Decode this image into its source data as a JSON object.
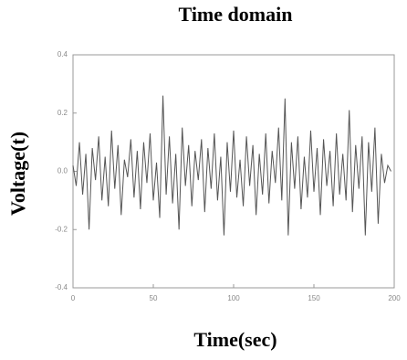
{
  "chart_data": {
    "type": "line",
    "title": "Time domain",
    "xlabel": "Time(sec)",
    "ylabel": "Voltage(t)",
    "x": [
      0,
      2,
      4,
      6,
      8,
      10,
      12,
      14,
      16,
      18,
      20,
      22,
      24,
      26,
      28,
      30,
      32,
      34,
      36,
      38,
      40,
      42,
      44,
      46,
      48,
      50,
      52,
      54,
      56,
      58,
      60,
      62,
      64,
      66,
      68,
      70,
      72,
      74,
      76,
      78,
      80,
      82,
      84,
      86,
      88,
      90,
      92,
      94,
      96,
      98,
      100,
      102,
      104,
      106,
      108,
      110,
      112,
      114,
      116,
      118,
      120,
      122,
      124,
      126,
      128,
      130,
      132,
      134,
      136,
      138,
      140,
      142,
      144,
      146,
      148,
      150,
      152,
      154,
      156,
      158,
      160,
      162,
      164,
      166,
      168,
      170,
      172,
      174,
      176,
      178,
      180,
      182,
      184,
      186,
      188,
      190,
      192,
      194,
      196,
      198
    ],
    "values": [
      0.02,
      -0.05,
      0.1,
      -0.08,
      0.06,
      -0.2,
      0.08,
      -0.03,
      0.12,
      -0.1,
      0.05,
      -0.12,
      0.14,
      -0.06,
      0.09,
      -0.15,
      0.04,
      -0.02,
      0.11,
      -0.09,
      0.07,
      -0.13,
      0.1,
      -0.04,
      0.13,
      -0.1,
      0.03,
      -0.16,
      0.26,
      -0.08,
      0.12,
      -0.11,
      0.06,
      -0.2,
      0.15,
      -0.05,
      0.09,
      -0.12,
      0.07,
      -0.03,
      0.11,
      -0.14,
      0.08,
      -0.06,
      0.13,
      -0.1,
      0.05,
      -0.22,
      0.1,
      -0.07,
      0.14,
      -0.09,
      0.04,
      -0.12,
      0.12,
      -0.05,
      0.09,
      -0.15,
      0.06,
      -0.08,
      0.13,
      -0.11,
      0.07,
      -0.04,
      0.15,
      -0.1,
      0.25,
      -0.22,
      0.1,
      -0.06,
      0.12,
      -0.13,
      0.05,
      -0.09,
      0.14,
      -0.07,
      0.08,
      -0.15,
      0.11,
      -0.05,
      0.07,
      -0.12,
      0.13,
      -0.08,
      0.06,
      -0.1,
      0.21,
      -0.14,
      0.09,
      -0.06,
      0.12,
      -0.22,
      0.1,
      -0.07,
      0.15,
      -0.18,
      0.06,
      -0.04,
      0.02,
      0
    ],
    "color": "#555555",
    "xlim": [
      0,
      200
    ],
    "xticks": [
      0,
      50,
      100,
      150,
      200
    ],
    "ylim": [
      -0.4,
      0.4
    ],
    "yticks": [
      -0.4,
      -0.2,
      {
        "value": 0,
        "label": "0.0"
      },
      0.2,
      0.4
    ]
  }
}
